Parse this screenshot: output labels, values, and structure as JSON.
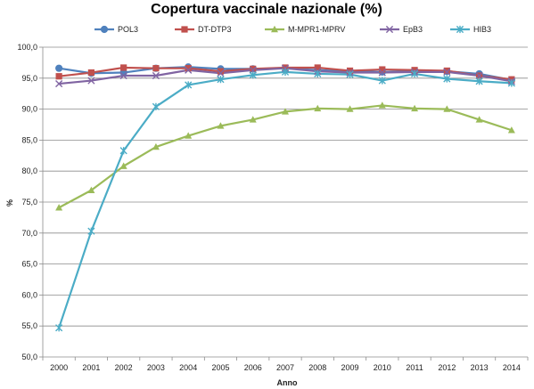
{
  "chart_data": {
    "type": "line",
    "title": "Copertura vaccinale nazionale (%)",
    "xlabel": "Anno",
    "ylabel": "%",
    "ylim": [
      50,
      100
    ],
    "ytick_step": 5,
    "ytick_labels": [
      "50,0",
      "55,0",
      "60,0",
      "65,0",
      "70,0",
      "75,0",
      "80,0",
      "85,0",
      "90,0",
      "95,0",
      "100,0"
    ],
    "grid": "horizontal",
    "legend_position": "top",
    "categories": [
      "2000",
      "2001",
      "2002",
      "2003",
      "2004",
      "2005",
      "2006",
      "2007",
      "2008",
      "2009",
      "2010",
      "2011",
      "2012",
      "2013",
      "2014"
    ],
    "series": [
      {
        "name": "POL3",
        "color": "#4f81bd",
        "marker": "circle",
        "values": [
          96.6,
          95.8,
          95.9,
          96.6,
          96.8,
          96.5,
          96.5,
          96.6,
          96.3,
          96.1,
          96.0,
          96.1,
          96.1,
          95.7,
          94.7
        ]
      },
      {
        "name": "DT-DTP3",
        "color": "#c0504d",
        "marker": "square",
        "values": [
          95.3,
          95.9,
          96.7,
          96.6,
          96.6,
          96.1,
          96.5,
          96.7,
          96.7,
          96.2,
          96.4,
          96.3,
          96.2,
          95.4,
          94.8
        ]
      },
      {
        "name": "M-MPR1-MPRV",
        "color": "#9bbb59",
        "marker": "triangle",
        "values": [
          74.1,
          76.9,
          80.8,
          83.9,
          85.7,
          87.3,
          88.3,
          89.6,
          90.1,
          90.0,
          90.6,
          90.1,
          90.0,
          88.3,
          86.6
        ]
      },
      {
        "name": "EpB3",
        "color": "#8064a2",
        "marker": "x",
        "values": [
          94.1,
          94.6,
          95.4,
          95.4,
          96.3,
          95.8,
          96.3,
          96.6,
          96.1,
          95.9,
          95.9,
          96.0,
          96.0,
          95.4,
          94.5
        ]
      },
      {
        "name": "HIB3",
        "color": "#4bacc6",
        "marker": "star",
        "values": [
          54.7,
          70.3,
          83.3,
          90.4,
          93.9,
          94.8,
          95.5,
          96.0,
          95.7,
          95.6,
          94.6,
          95.7,
          94.9,
          94.5,
          94.2
        ]
      }
    ]
  }
}
